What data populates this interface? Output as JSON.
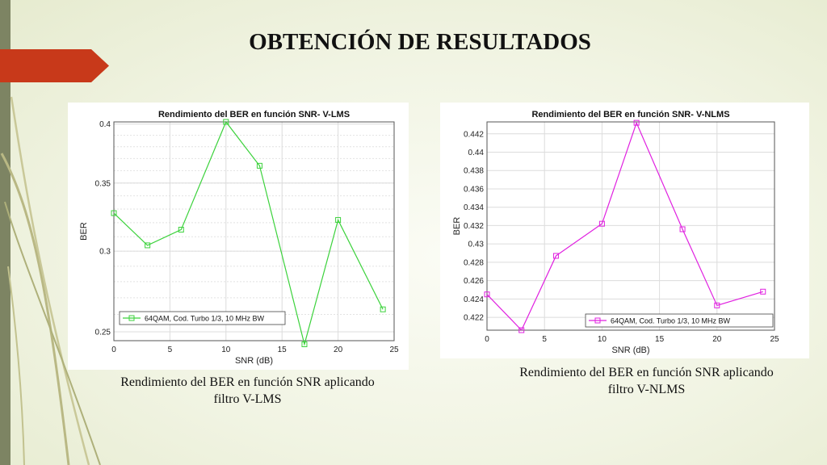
{
  "slide": {
    "title": "OBTENCIÓN DE RESULTADOS",
    "accent_color": "#c8391a",
    "left_bar_color": "#7d8463"
  },
  "captions": [
    {
      "line1": "Rendimiento del BER en función SNR aplicando",
      "line2": "filtro V-LMS"
    },
    {
      "line1": "Rendimiento del BER en función SNR aplicando",
      "line2": "filtro V-NLMS"
    }
  ],
  "chart_data": [
    {
      "type": "line",
      "title": "Rendimiento del BER en función SNR- V-LMS",
      "xlabel": "SNR (dB)",
      "ylabel": "BER",
      "xlim": [
        0,
        25
      ],
      "ylim": [
        0.245,
        0.402
      ],
      "yscale": "log",
      "grid": true,
      "legend": "bottom-left",
      "xticks": [
        "0",
        "5",
        "10",
        "15",
        "20",
        "25"
      ],
      "yticks": [
        "0.25",
        "0.3",
        "0.35",
        "0.4"
      ],
      "series": [
        {
          "name": "64QAM, Cod. Turbo 1/3, 10 MHz BW",
          "color": "#3cd23c",
          "marker": "square",
          "x": [
            0,
            3,
            6,
            10,
            13,
            17,
            20,
            24
          ],
          "y": [
            0.327,
            0.304,
            0.315,
            0.402,
            0.364,
            0.243,
            0.322,
            0.263
          ]
        }
      ]
    },
    {
      "type": "line",
      "title": "Rendimiento del BER en función SNR- V-NLMS",
      "xlabel": "SNR (dB)",
      "ylabel": "BER",
      "xlim": [
        0,
        25
      ],
      "ylim": [
        0.4206,
        0.4433
      ],
      "grid": true,
      "legend": "bottom-right",
      "xticks": [
        "0",
        "5",
        "10",
        "15",
        "20",
        "25"
      ],
      "yticks": [
        "0.422",
        "0.424",
        "0.426",
        "0.428",
        "0.43",
        "0.432",
        "0.434",
        "0.436",
        "0.438",
        "0.44",
        "0.442"
      ],
      "series": [
        {
          "name": "64QAM, Cod. Turbo 1/3, 10 MHz BW",
          "color": "#e020e0",
          "marker": "square",
          "x": [
            0,
            3,
            6,
            10,
            13,
            17,
            20,
            24
          ],
          "y": [
            0.4245,
            0.4206,
            0.4287,
            0.4322,
            0.4432,
            0.4316,
            0.4233,
            0.4248
          ]
        }
      ]
    }
  ]
}
